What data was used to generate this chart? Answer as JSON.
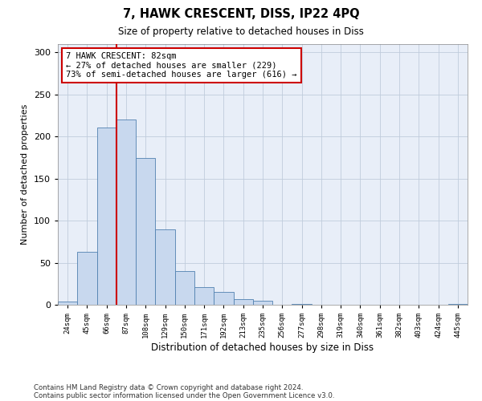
{
  "title1": "7, HAWK CRESCENT, DISS, IP22 4PQ",
  "title2": "Size of property relative to detached houses in Diss",
  "xlabel": "Distribution of detached houses by size in Diss",
  "ylabel": "Number of detached properties",
  "categories": [
    "24sqm",
    "45sqm",
    "66sqm",
    "87sqm",
    "108sqm",
    "129sqm",
    "150sqm",
    "171sqm",
    "192sqm",
    "213sqm",
    "235sqm",
    "256sqm",
    "277sqm",
    "298sqm",
    "319sqm",
    "340sqm",
    "361sqm",
    "382sqm",
    "403sqm",
    "424sqm",
    "445sqm"
  ],
  "values": [
    4,
    63,
    211,
    220,
    175,
    90,
    40,
    21,
    15,
    7,
    5,
    0,
    1,
    0,
    0,
    0,
    0,
    0,
    0,
    0,
    1
  ],
  "bar_color": "#c8d8ee",
  "bar_edge_color": "#5080b0",
  "vline_color": "#cc0000",
  "annotation_line1": "7 HAWK CRESCENT: 82sqm",
  "annotation_line2": "← 27% of detached houses are smaller (229)",
  "annotation_line3": "73% of semi-detached houses are larger (616) →",
  "annotation_box_color": "#ffffff",
  "annotation_border_color": "#cc0000",
  "ylim": [
    0,
    310
  ],
  "yticks": [
    0,
    50,
    100,
    150,
    200,
    250,
    300
  ],
  "background_color": "#e8eef8",
  "grid_color": "#c0ccdc",
  "footnote1": "Contains HM Land Registry data © Crown copyright and database right 2024.",
  "footnote2": "Contains public sector information licensed under the Open Government Licence v3.0."
}
